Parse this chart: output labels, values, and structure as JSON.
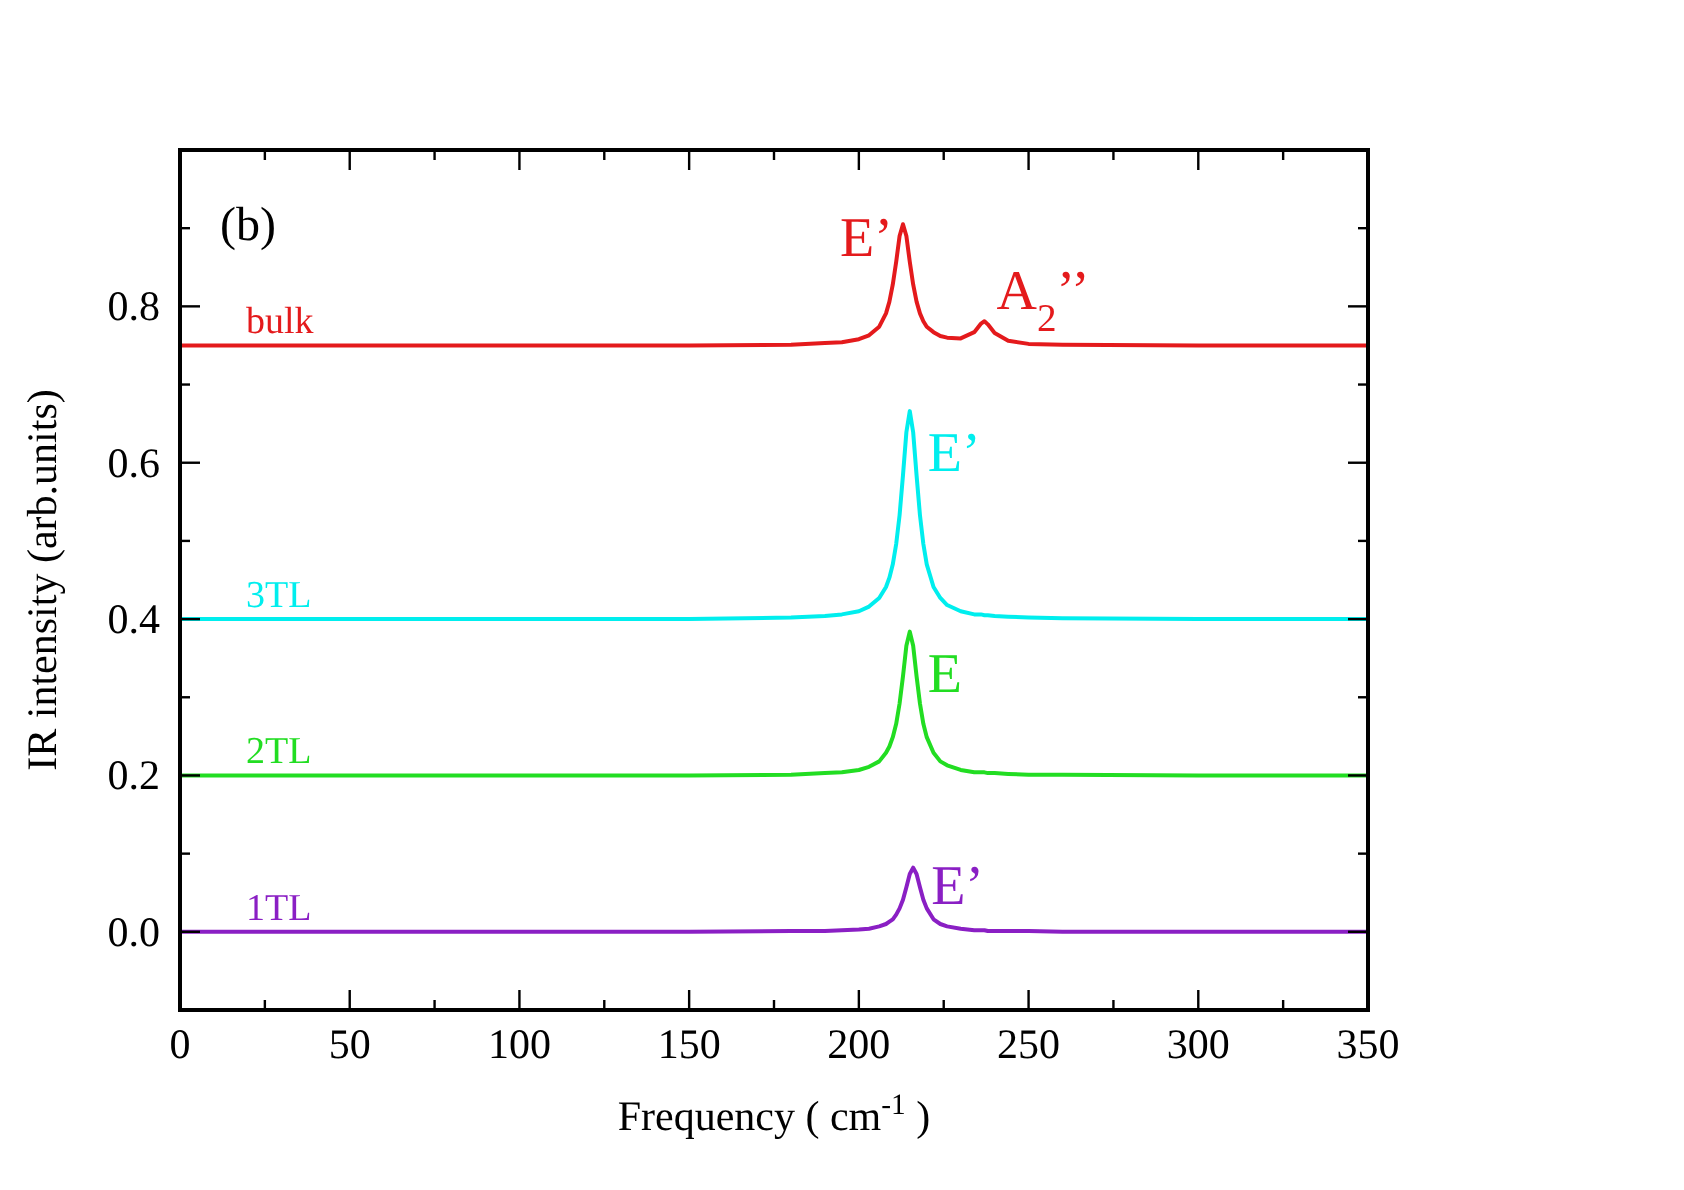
{
  "chart_data": {
    "type": "line",
    "xlabel": "Frequency ( cm$^{-1}$ )",
    "ylabel": "IR intensity (arb.units)",
    "x": [
      0,
      50,
      100,
      150,
      180,
      190,
      195,
      200,
      203,
      206,
      208,
      209,
      210,
      211,
      212,
      213,
      214,
      215,
      216,
      217,
      218,
      219,
      220,
      222,
      224,
      226,
      230,
      234,
      236,
      237,
      238,
      240,
      244,
      250,
      260,
      300,
      350
    ],
    "series": [
      {
        "name": "bulk",
        "color": "#e41a1c",
        "values": [
          0.75,
          0.75,
          0.75,
          0.75,
          0.751,
          0.753,
          0.754,
          0.758,
          0.763,
          0.774,
          0.791,
          0.806,
          0.828,
          0.857,
          0.89,
          0.905,
          0.89,
          0.857,
          0.828,
          0.806,
          0.791,
          0.781,
          0.774,
          0.767,
          0.762,
          0.76,
          0.759,
          0.767,
          0.778,
          0.781,
          0.777,
          0.766,
          0.756,
          0.752,
          0.751,
          0.75,
          0.75
        ]
      },
      {
        "name": "3TL",
        "color": "#00eeee",
        "values": [
          0.4,
          0.4,
          0.4,
          0.4,
          0.402,
          0.404,
          0.406,
          0.41,
          0.416,
          0.427,
          0.441,
          0.453,
          0.47,
          0.496,
          0.533,
          0.584,
          0.639,
          0.666,
          0.639,
          0.584,
          0.533,
          0.496,
          0.47,
          0.441,
          0.427,
          0.418,
          0.41,
          0.406,
          0.406,
          0.405,
          0.405,
          0.404,
          0.403,
          0.402,
          0.401,
          0.4,
          0.4
        ]
      },
      {
        "name": "2TL",
        "color": "#22dd22",
        "values": [
          0.2,
          0.2,
          0.2,
          0.2,
          0.201,
          0.203,
          0.204,
          0.207,
          0.211,
          0.218,
          0.229,
          0.237,
          0.249,
          0.266,
          0.292,
          0.327,
          0.366,
          0.384,
          0.366,
          0.327,
          0.292,
          0.266,
          0.249,
          0.229,
          0.218,
          0.213,
          0.207,
          0.204,
          0.204,
          0.204,
          0.203,
          0.203,
          0.202,
          0.201,
          0.201,
          0.2,
          0.2
        ]
      },
      {
        "name": "1TL",
        "color": "#8a1fc4",
        "values": [
          0,
          0,
          0,
          0,
          0.001,
          0.001,
          0.002,
          0.003,
          0.004,
          0.007,
          0.01,
          0.013,
          0.016,
          0.022,
          0.03,
          0.041,
          0.057,
          0.074,
          0.082,
          0.074,
          0.057,
          0.041,
          0.03,
          0.016,
          0.01,
          0.007,
          0.004,
          0.002,
          0.002,
          0.002,
          0.001,
          0.001,
          0.001,
          0.001,
          0,
          0,
          0
        ]
      }
    ],
    "xlim": [
      0,
      350
    ],
    "xticks": [
      0,
      {
        "value": 25,
        "label": null
      },
      50,
      {
        "value": 75,
        "label": null
      },
      100,
      {
        "value": 125,
        "label": null
      },
      150,
      {
        "value": 175,
        "label": null
      },
      200,
      {
        "value": 225,
        "label": null
      },
      250,
      {
        "value": 275,
        "label": null
      },
      300,
      {
        "value": 325,
        "label": null
      },
      350
    ],
    "ylim": [
      -0.1,
      1.0
    ],
    "yticks": [
      {
        "value": 0,
        "label": "0.0"
      },
      {
        "value": 0.1,
        "label": null
      },
      0.2,
      {
        "value": 0.3,
        "label": null
      },
      0.4,
      {
        "value": 0.5,
        "label": null
      },
      0.6,
      {
        "value": 0.7,
        "label": null
      },
      0.8,
      {
        "value": 0.9,
        "label": null
      }
    ],
    "grid": false,
    "marker": "none",
    "line_style": "solid",
    "annotations": [
      "(b)",
      {
        "text": "E’",
        "x": 213,
        "y": 0.905
      },
      {
        "text": "A$_{2}$’’",
        "x": 237,
        "y": 0.781
      },
      {
        "text": "E’",
        "x": 215,
        "y": 0.666
      },
      {
        "text": "E",
        "x": 215,
        "y": 0.384
      },
      {
        "text": "E’",
        "x": 216,
        "y": 0.082
      }
    ]
  }
}
